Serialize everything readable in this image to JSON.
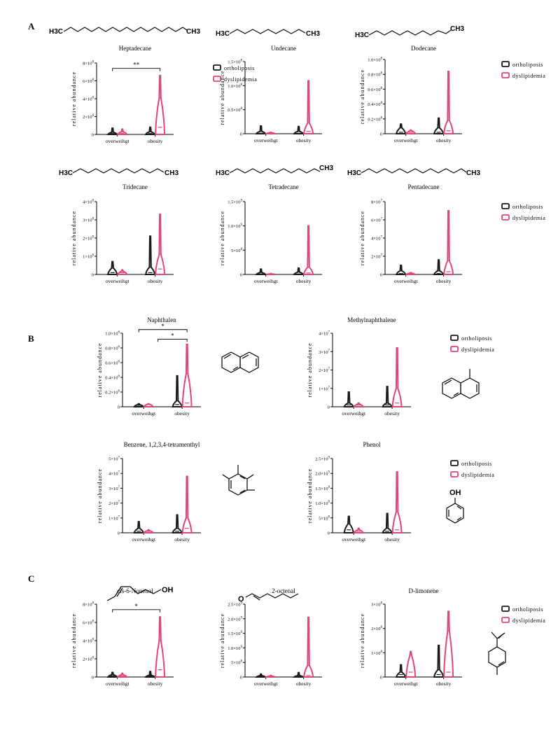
{
  "colors": {
    "ortholiposis": "#1a1a1a",
    "dyslipidemia": "#e0457b"
  },
  "sections": [
    {
      "label": "A"
    },
    {
      "label": "B"
    },
    {
      "label": "C"
    }
  ],
  "molecule_labels": {
    "chain_left": "H3C",
    "chain_right": "CH3",
    "hydroxyl": "OH",
    "aldehyde_oxygen": "O"
  },
  "chart_data": [
    {
      "type": "violin",
      "title": "Heptadecane",
      "ylabel": "relative abundance",
      "categories": [
        "overweihgt",
        "obesity"
      ],
      "ylim": [
        0,
        8
      ],
      "y_ticks": [
        {
          "m": "0"
        },
        {
          "m": "2",
          "e": "8"
        },
        {
          "m": "4",
          "e": "8"
        },
        {
          "m": "6",
          "e": "8"
        },
        {
          "m": "8",
          "e": "8"
        }
      ],
      "series": [
        {
          "name": "ortholiposis",
          "values": [
            {
              "max": 0.7,
              "median": 0.1,
              "q3": 0.25
            },
            {
              "max": 0.8,
              "median": 0.1,
              "q3": 0.3
            }
          ]
        },
        {
          "name": "dyslipidemia",
          "values": [
            {
              "max": 0.6,
              "median": 0.1,
              "q3": 0.3
            },
            {
              "max": 6.6,
              "median": 0.8,
              "q3": 4.1
            }
          ]
        }
      ],
      "annotations": [
        {
          "text": "**",
          "from": 0,
          "to": 1,
          "y": 7.4
        }
      ],
      "legend": "right"
    },
    {
      "type": "violin",
      "title": "Undecane",
      "ylabel": "relative abundance",
      "categories": [
        "overweihgt",
        "obesity"
      ],
      "ylim": [
        0,
        1.5
      ],
      "y_ticks": [
        {
          "m": "0"
        },
        {
          "m": "0.5",
          "e": "8"
        },
        {
          "m": "1.0",
          "e": "8"
        },
        {
          "m": "1.5",
          "e": "8"
        }
      ],
      "series": [
        {
          "name": "ortholiposis",
          "values": [
            {
              "max": 0.16,
              "median": 0.01,
              "q3": 0.05
            },
            {
              "max": 0.15,
              "median": 0.01,
              "q3": 0.05
            }
          ]
        },
        {
          "name": "dyslipidemia",
          "values": [
            {
              "max": 0.03,
              "median": 0.01,
              "q3": 0.02
            },
            {
              "max": 1.1,
              "median": 0.05,
              "q3": 0.22
            }
          ]
        }
      ],
      "annotations": []
    },
    {
      "type": "violin",
      "title": "Dodecane",
      "ylabel": "relative abundance",
      "categories": [
        "overweihgt",
        "obesity"
      ],
      "ylim": [
        0,
        1.0
      ],
      "y_ticks": [
        {
          "m": "0"
        },
        {
          "m": "0.2",
          "e": "8"
        },
        {
          "m": "0.4",
          "e": "8"
        },
        {
          "m": "0.6",
          "e": "8"
        },
        {
          "m": "0.8",
          "e": "8"
        },
        {
          "m": "1.0",
          "e": "8"
        }
      ],
      "series": [
        {
          "name": "ortholiposis",
          "values": [
            {
              "max": 0.13,
              "median": 0.02,
              "q3": 0.08
            },
            {
              "max": 0.21,
              "median": 0.02,
              "q3": 0.08
            }
          ]
        },
        {
          "name": "dyslipidemia",
          "values": [
            {
              "max": 0.05,
              "median": 0.02,
              "q3": 0.04
            },
            {
              "max": 0.84,
              "median": 0.04,
              "q3": 0.18
            }
          ]
        }
      ],
      "annotations": [],
      "legend": "right"
    },
    {
      "type": "violin",
      "title": "Tridecane",
      "ylabel": "relative abundance",
      "categories": [
        "overweihgt",
        "obesity"
      ],
      "ylim": [
        0,
        4
      ],
      "y_ticks": [
        {
          "m": "0"
        },
        {
          "m": "1",
          "e": "8"
        },
        {
          "m": "2",
          "e": "8"
        },
        {
          "m": "3",
          "e": "8"
        },
        {
          "m": "4",
          "e": "8"
        }
      ],
      "series": [
        {
          "name": "ortholiposis",
          "values": [
            {
              "max": 0.7,
              "median": 0.1,
              "q3": 0.35
            },
            {
              "max": 2.1,
              "median": 0.1,
              "q3": 0.4
            }
          ]
        },
        {
          "name": "dyslipidemia",
          "values": [
            {
              "max": 0.25,
              "median": 0.1,
              "q3": 0.18
            },
            {
              "max": 3.3,
              "median": 0.3,
              "q3": 1.1
            }
          ]
        }
      ],
      "annotations": []
    },
    {
      "type": "violin",
      "title": "Tetradecane",
      "ylabel": "relative abundance",
      "categories": [
        "overweihgt",
        "obesity"
      ],
      "ylim": [
        0,
        1.5
      ],
      "y_ticks": [
        {
          "m": "0"
        },
        {
          "m": "5",
          "e": "8"
        },
        {
          "m": "1.0",
          "e": "9"
        },
        {
          "m": "1.5",
          "e": "9"
        }
      ],
      "series": [
        {
          "name": "ortholiposis",
          "values": [
            {
              "max": 0.11,
              "median": 0.01,
              "q3": 0.04
            },
            {
              "max": 0.13,
              "median": 0.01,
              "q3": 0.05
            }
          ]
        },
        {
          "name": "dyslipidemia",
          "values": [
            {
              "max": 0.02,
              "median": 0.01,
              "q3": 0.01
            },
            {
              "max": 1.0,
              "median": 0.03,
              "q3": 0.15
            }
          ]
        }
      ],
      "annotations": []
    },
    {
      "type": "violin",
      "title": "Pentadecane",
      "ylabel": "relative abundance",
      "categories": [
        "overweihgt",
        "obesity"
      ],
      "ylim": [
        0,
        8
      ],
      "y_ticks": [
        {
          "m": "0"
        },
        {
          "m": "2",
          "e": "7"
        },
        {
          "m": "4",
          "e": "7"
        },
        {
          "m": "6",
          "e": "7"
        },
        {
          "m": "8",
          "e": "7"
        }
      ],
      "series": [
        {
          "name": "ortholiposis",
          "values": [
            {
              "max": 1.0,
              "median": 0.1,
              "q3": 0.4
            },
            {
              "max": 1.6,
              "median": 0.1,
              "q3": 0.4
            }
          ]
        },
        {
          "name": "dyslipidemia",
          "values": [
            {
              "max": 0.2,
              "median": 0.1,
              "q3": 0.15
            },
            {
              "max": 7.0,
              "median": 0.3,
              "q3": 1.5
            }
          ]
        }
      ],
      "annotations": [],
      "legend": "right"
    },
    {
      "type": "violin",
      "title": "Naphthalen",
      "ylabel": "relative abundance",
      "categories": [
        "overweihgt",
        "obesity"
      ],
      "ylim": [
        0,
        1.0
      ],
      "y_ticks": [
        {
          "m": "0"
        },
        {
          "m": "0.2",
          "e": "6"
        },
        {
          "m": "0.4",
          "e": "6"
        },
        {
          "m": "0.6",
          "e": "6"
        },
        {
          "m": "0.8",
          "e": "6"
        },
        {
          "m": "1.0",
          "e": "6"
        }
      ],
      "series": [
        {
          "name": "ortholiposis",
          "values": [
            {
              "max": 0.04,
              "median": 0.02,
              "q3": 0.03
            },
            {
              "max": 0.42,
              "median": 0.03,
              "q3": 0.08
            }
          ]
        },
        {
          "name": "dyslipidemia",
          "values": [
            {
              "max": 0.04,
              "median": 0.03,
              "q3": 0.035
            },
            {
              "max": 0.85,
              "median": 0.05,
              "q3": 0.45
            }
          ]
        }
      ],
      "annotations": [
        {
          "text": "*",
          "from": 0,
          "to": 1,
          "y": 1.05
        },
        {
          "text": "*",
          "from": 0.5,
          "to": 1,
          "y": 0.92
        }
      ]
    },
    {
      "type": "violin",
      "title": "Methylnaphthalene",
      "ylabel": "relative abundance",
      "categories": [
        "overweihgt",
        "obesity"
      ],
      "ylim": [
        0,
        4
      ],
      "y_ticks": [
        {
          "m": "0"
        },
        {
          "m": "1",
          "e": "7"
        },
        {
          "m": "2",
          "e": "7"
        },
        {
          "m": "3",
          "e": "7"
        },
        {
          "m": "4",
          "e": "7"
        }
      ],
      "series": [
        {
          "name": "ortholiposis",
          "values": [
            {
              "max": 0.8,
              "median": 0.1,
              "q3": 0.2
            },
            {
              "max": 1.1,
              "median": 0.1,
              "q3": 0.2
            }
          ]
        },
        {
          "name": "dyslipidemia",
          "values": [
            {
              "max": 0.2,
              "median": 0.1,
              "q3": 0.15
            },
            {
              "max": 3.2,
              "median": 0.2,
              "q3": 1.0
            }
          ]
        }
      ],
      "annotations": [],
      "legend": "right"
    },
    {
      "type": "violin",
      "title": "Benzene, 1,2,3,4-tetramenthyl",
      "ylabel": "relative abundance",
      "categories": [
        "overweihgt",
        "obesity"
      ],
      "ylim": [
        0,
        5
      ],
      "y_ticks": [
        {
          "m": "0"
        },
        {
          "m": "1",
          "e": "7"
        },
        {
          "m": "2",
          "e": "7"
        },
        {
          "m": "3",
          "e": "7"
        },
        {
          "m": "4",
          "e": "7"
        },
        {
          "m": "5",
          "e": "7"
        }
      ],
      "series": [
        {
          "name": "ortholiposis",
          "values": [
            {
              "max": 0.75,
              "median": 0.1,
              "q3": 0.3
            },
            {
              "max": 1.2,
              "median": 0.1,
              "q3": 0.3
            }
          ]
        },
        {
          "name": "dyslipidemia",
          "values": [
            {
              "max": 0.2,
              "median": 0.1,
              "q3": 0.15
            },
            {
              "max": 3.8,
              "median": 0.3,
              "q3": 1.0
            }
          ]
        }
      ],
      "annotations": []
    },
    {
      "type": "violin",
      "title": "Phenol",
      "ylabel": "relative abundance",
      "categories": [
        "overweihgt",
        "obesity"
      ],
      "ylim": [
        0,
        2.5
      ],
      "y_ticks": [
        {
          "m": "0"
        },
        {
          "m": "5",
          "e": "8"
        },
        {
          "m": "1.0",
          "e": "9"
        },
        {
          "m": "1.5",
          "e": "9"
        },
        {
          "m": "2.0",
          "e": "9"
        },
        {
          "m": "2.5",
          "e": "9"
        }
      ],
      "series": [
        {
          "name": "ortholiposis",
          "values": [
            {
              "max": 0.55,
              "median": 0.1,
              "q3": 0.3
            },
            {
              "max": 0.65,
              "median": 0.05,
              "q3": 0.15
            }
          ]
        },
        {
          "name": "dyslipidemia",
          "values": [
            {
              "max": 0.15,
              "median": 0.05,
              "q3": 0.1
            },
            {
              "max": 2.05,
              "median": 0.1,
              "q3": 0.7
            }
          ]
        }
      ],
      "annotations": [],
      "legend": "right"
    },
    {
      "type": "violin",
      "title": "cis-6-Nonenol",
      "ylabel": "relative abundance",
      "categories": [
        "overweihgt",
        "obesity"
      ],
      "ylim": [
        0,
        8
      ],
      "y_ticks": [
        {
          "m": "0"
        },
        {
          "m": "2",
          "e": "8"
        },
        {
          "m": "4",
          "e": "8"
        },
        {
          "m": "6",
          "e": "8"
        },
        {
          "m": "8",
          "e": "8"
        }
      ],
      "series": [
        {
          "name": "ortholiposis",
          "values": [
            {
              "max": 0.5,
              "median": 0.1,
              "q3": 0.25
            },
            {
              "max": 0.6,
              "median": 0.1,
              "q3": 0.2
            }
          ]
        },
        {
          "name": "dyslipidemia",
          "values": [
            {
              "max": 0.4,
              "median": 0.1,
              "q3": 0.25
            },
            {
              "max": 6.6,
              "median": 0.8,
              "q3": 4.0
            }
          ]
        }
      ],
      "annotations": [
        {
          "text": "*",
          "from": 0,
          "to": 1,
          "y": 7.4
        }
      ]
    },
    {
      "type": "violin",
      "title": "2-octenal",
      "ylabel": "relative abundance",
      "categories": [
        "overweihgt",
        "obesity"
      ],
      "ylim": [
        0,
        2.5
      ],
      "y_ticks": [
        {
          "m": "0"
        },
        {
          "m": "5",
          "e": "8"
        },
        {
          "m": "1.0",
          "e": "9"
        },
        {
          "m": "1.5",
          "e": "9"
        },
        {
          "m": "2.0",
          "e": "9"
        },
        {
          "m": "2.5",
          "e": "9"
        }
      ],
      "series": [
        {
          "name": "ortholiposis",
          "values": [
            {
              "max": 0.1,
              "median": 0.02,
              "q3": 0.05
            },
            {
              "max": 0.15,
              "median": 0.02,
              "q3": 0.05
            }
          ]
        },
        {
          "name": "dyslipidemia",
          "values": [
            {
              "max": 0.05,
              "median": 0.02,
              "q3": 0.03
            },
            {
              "max": 2.05,
              "median": 0.05,
              "q3": 0.4
            }
          ]
        }
      ],
      "annotations": []
    },
    {
      "type": "violin",
      "title": "D-limonene",
      "ylabel": "relative abundance",
      "categories": [
        "overweihgt",
        "obesity"
      ],
      "ylim": [
        0,
        3
      ],
      "y_ticks": [
        {
          "m": "0"
        },
        {
          "m": "1",
          "e": "8"
        },
        {
          "m": "2",
          "e": "8"
        },
        {
          "m": "3",
          "e": "8"
        }
      ],
      "series": [
        {
          "name": "ortholiposis",
          "values": [
            {
              "max": 0.5,
              "median": 0.1,
              "q3": 0.2
            },
            {
              "max": 1.3,
              "median": 0.1,
              "q3": 0.3
            }
          ]
        },
        {
          "name": "dyslipidemia",
          "values": [
            {
              "max": 1.05,
              "median": 0.2,
              "q3": 0.9
            },
            {
              "max": 2.7,
              "median": 0.2,
              "q3": 1.9
            }
          ]
        }
      ],
      "annotations": [],
      "legend": "right"
    }
  ]
}
